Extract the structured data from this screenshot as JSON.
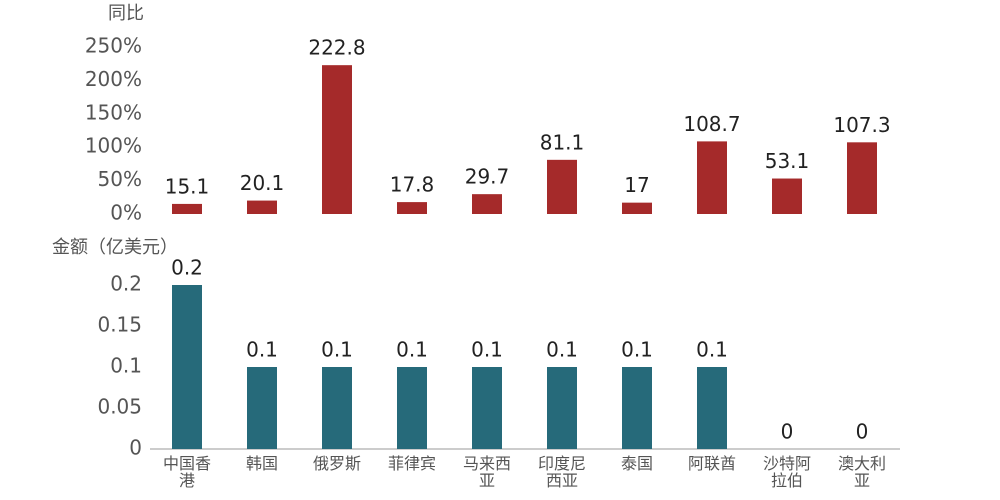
{
  "chart_data": [
    {
      "type": "bar",
      "ylabel": "同比",
      "color": "#a52a2a",
      "values": [
        15.1,
        20.1,
        222.8,
        17.8,
        29.7,
        81.1,
        17,
        108.7,
        53.1,
        107.3
      ],
      "ylim": [
        0,
        250
      ],
      "yticks": [
        {
          "value": 0,
          "label": "0%"
        },
        {
          "value": 50,
          "label": "50%"
        },
        {
          "value": 100,
          "label": "100%"
        },
        {
          "value": 150,
          "label": "150%"
        },
        {
          "value": 200,
          "label": "200%"
        },
        {
          "value": 250,
          "label": "250%"
        }
      ]
    },
    {
      "type": "bar",
      "ylabel": "金额（亿美元）",
      "color": "#266a7a",
      "categories": [
        "中国香港",
        "韩国",
        "俄罗斯",
        "菲律宾",
        "马来西亚",
        "印度尼西亚",
        "泰国",
        "阿联酋",
        "沙特阿拉伯",
        "澳大利亚"
      ],
      "values": [
        0.2,
        0.1,
        0.1,
        0.1,
        0.1,
        0.1,
        0.1,
        0.1,
        0,
        0
      ],
      "ylim": [
        0,
        0.2
      ],
      "yticks": [
        0,
        0.05,
        0.1,
        0.15,
        0.2
      ]
    }
  ]
}
